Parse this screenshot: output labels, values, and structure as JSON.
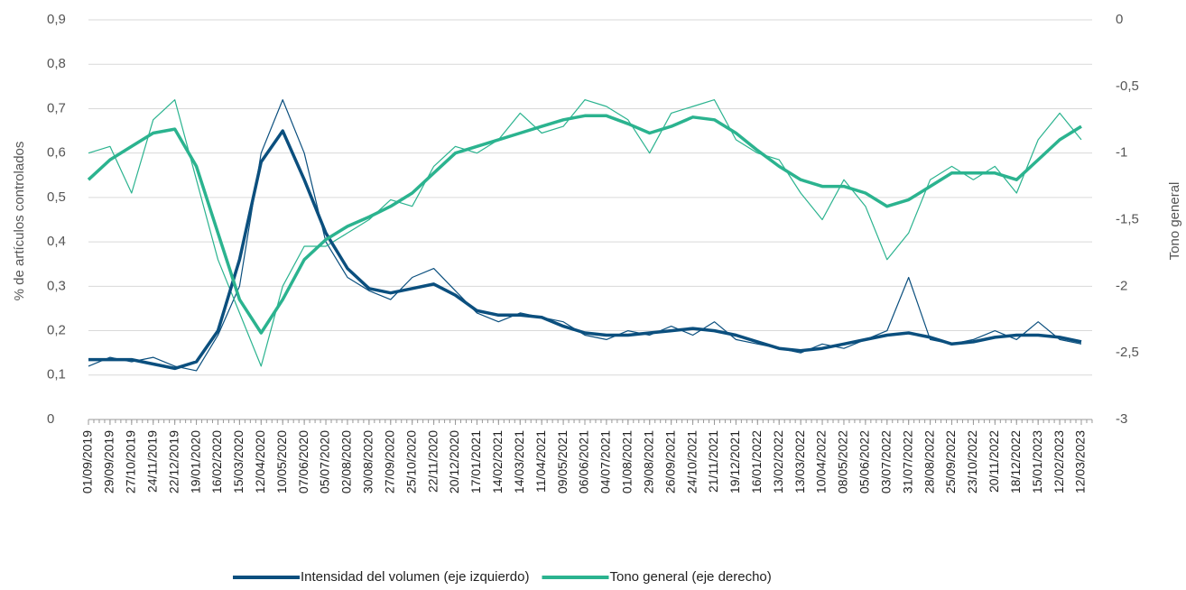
{
  "chart_data": {
    "type": "line",
    "y_label": "% de artículos controlados",
    "y2_label": "Tono general",
    "categories": [
      "01/09/2019",
      "29/09/2019",
      "27/10/2019",
      "24/11/2019",
      "22/12/2019",
      "19/01/2020",
      "16/02/2020",
      "15/03/2020",
      "12/04/2020",
      "10/05/2020",
      "07/06/2020",
      "05/07/2020",
      "02/08/2020",
      "30/08/2020",
      "27/09/2020",
      "25/10/2020",
      "22/11/2020",
      "20/12/2020",
      "17/01/2021",
      "14/02/2021",
      "14/03/2021",
      "11/04/2021",
      "09/05/2021",
      "06/06/2021",
      "04/07/2021",
      "01/08/2021",
      "29/08/2021",
      "26/09/2021",
      "24/10/2021",
      "21/11/2021",
      "19/12/2021",
      "16/01/2022",
      "13/02/2022",
      "13/03/2022",
      "10/04/2022",
      "08/05/2022",
      "05/06/2022",
      "03/07/2022",
      "31/07/2022",
      "28/08/2022",
      "25/09/2022",
      "23/10/2022",
      "20/11/2022",
      "18/12/2022",
      "15/01/2023",
      "12/02/2023",
      "12/03/2023"
    ],
    "series": [
      {
        "color": "#0b4f7e",
        "axis": "y",
        "values": [
          0.12,
          0.14,
          0.13,
          0.14,
          0.12,
          0.11,
          0.19,
          0.3,
          0.6,
          0.72,
          0.6,
          0.4,
          0.32,
          0.29,
          0.27,
          0.32,
          0.34,
          0.29,
          0.24,
          0.22,
          0.24,
          0.23,
          0.22,
          0.19,
          0.18,
          0.2,
          0.19,
          0.21,
          0.19,
          0.22,
          0.18,
          0.17,
          0.16,
          0.15,
          0.17,
          0.16,
          0.18,
          0.2,
          0.32,
          0.18,
          0.17,
          0.18,
          0.2,
          0.18,
          0.22,
          0.18,
          0.17
        ]
      },
      {
        "color": "#2bb38f",
        "axis": "y2",
        "values": [
          -1.0,
          -0.95,
          -1.3,
          -0.75,
          -0.6,
          -1.2,
          -1.8,
          -2.2,
          -2.6,
          -2.0,
          -1.7,
          -1.7,
          -1.6,
          -1.5,
          -1.35,
          -1.4,
          -1.1,
          -0.95,
          -1.0,
          -0.9,
          -0.7,
          -0.85,
          -0.8,
          -0.6,
          -0.65,
          -0.75,
          -1.0,
          -0.7,
          -0.65,
          -0.6,
          -0.9,
          -1.0,
          -1.05,
          -1.3,
          -1.5,
          -1.2,
          -1.4,
          -1.8,
          -1.6,
          -1.2,
          -1.1,
          -1.2,
          -1.1,
          -1.3,
          -0.9,
          -0.7,
          -0.9
        ]
      },
      {
        "name": "Intensidad del volumen (eje izquierdo)",
        "color": "#0b4f7e",
        "axis": "y",
        "values": [
          0.135,
          0.135,
          0.135,
          0.125,
          0.115,
          0.13,
          0.2,
          0.36,
          0.58,
          0.65,
          0.54,
          0.42,
          0.34,
          0.295,
          0.285,
          0.295,
          0.305,
          0.28,
          0.245,
          0.235,
          0.235,
          0.23,
          0.21,
          0.195,
          0.19,
          0.19,
          0.195,
          0.2,
          0.205,
          0.2,
          0.19,
          0.175,
          0.16,
          0.155,
          0.16,
          0.17,
          0.18,
          0.19,
          0.195,
          0.185,
          0.17,
          0.175,
          0.185,
          0.19,
          0.19,
          0.185,
          0.175
        ]
      },
      {
        "name": "Tono general (eje derecho)",
        "color": "#2bb38f",
        "axis": "y2",
        "values": [
          -1.2,
          -1.05,
          -0.95,
          -0.85,
          -0.82,
          -1.1,
          -1.6,
          -2.1,
          -2.35,
          -2.1,
          -1.8,
          -1.65,
          -1.55,
          -1.48,
          -1.4,
          -1.3,
          -1.15,
          -1.0,
          -0.95,
          -0.9,
          -0.85,
          -0.8,
          -0.75,
          -0.72,
          -0.72,
          -0.78,
          -0.85,
          -0.8,
          -0.73,
          -0.75,
          -0.85,
          -0.98,
          -1.1,
          -1.2,
          -1.25,
          -1.25,
          -1.3,
          -1.4,
          -1.35,
          -1.25,
          -1.15,
          -1.15,
          -1.15,
          -1.2,
          -1.05,
          -0.9,
          -0.8
        ]
      }
    ],
    "ylim": [
      0,
      0.9
    ],
    "yticks": [
      0,
      {
        "value": 0.1,
        "label": "0,1"
      },
      {
        "value": 0.2,
        "label": "0,2"
      },
      {
        "value": 0.3,
        "label": "0,3"
      },
      {
        "value": 0.4,
        "label": "0,4"
      },
      {
        "value": 0.5,
        "label": "0,5"
      },
      {
        "value": 0.6,
        "label": "0,6"
      },
      {
        "value": 0.7,
        "label": "0,7"
      },
      {
        "value": 0.8,
        "label": "0,8"
      },
      {
        "value": 0.9,
        "label": "0,9"
      }
    ],
    "y2lim": [
      -3,
      0
    ],
    "y2ticks": [
      -3,
      {
        "value": -2.5,
        "label": "-2,5"
      },
      -2,
      {
        "value": -1.5,
        "label": "-1,5"
      },
      -1,
      {
        "value": -0.5,
        "label": "-0,5"
      },
      0
    ],
    "grid": true,
    "legend": "bottom"
  }
}
